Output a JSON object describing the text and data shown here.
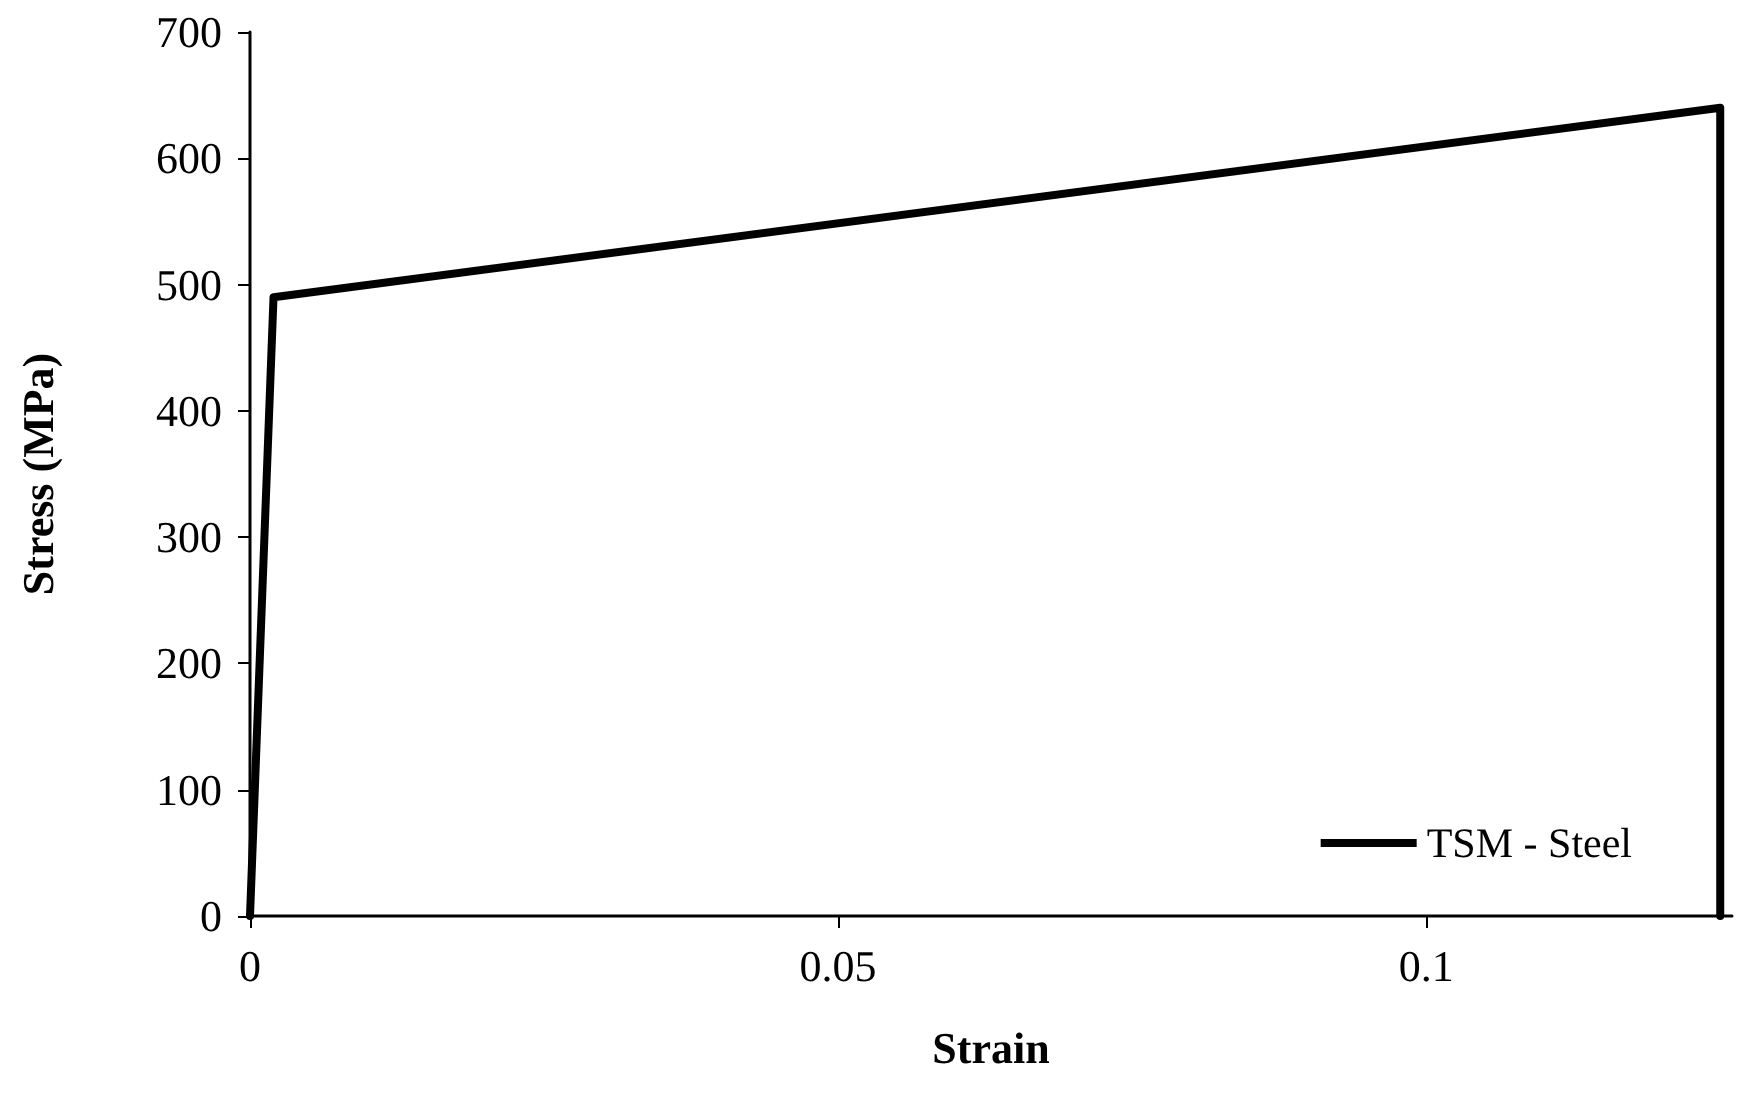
{
  "chart_data": {
    "type": "line",
    "xlabel": "Strain",
    "ylabel": "Stress (MPa)",
    "x": [
      0,
      0.002,
      0.125,
      0.125
    ],
    "series": [
      {
        "name": "TSM - Steel",
        "color": "#000000",
        "values": [
          0,
          490,
          640,
          0
        ]
      }
    ],
    "xlim": [
      0,
      0.126
    ],
    "xticks": [
      0,
      0.05,
      {
        "value": 0.1,
        "label": "0.1"
      }
    ],
    "ylim": [
      0,
      700
    ],
    "yticks": [
      0,
      100,
      200,
      300,
      400,
      500,
      600,
      700
    ],
    "grid": false,
    "legend": "bottom right",
    "marker": "none",
    "line_style": "solid"
  }
}
